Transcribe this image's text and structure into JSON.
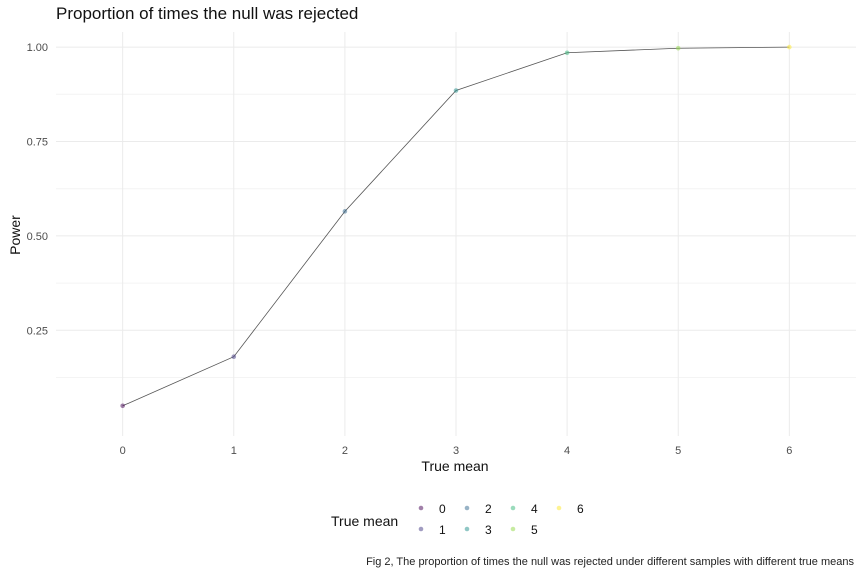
{
  "chart_data": {
    "type": "line",
    "title": "Proportion of times the null was rejected",
    "xlabel": "True mean",
    "ylabel": "Power",
    "x": [
      0,
      1,
      2,
      3,
      4,
      5,
      6
    ],
    "series": [
      {
        "values": [
          0.05,
          0.18,
          0.565,
          0.885,
          0.985,
          0.997,
          1.0
        ]
      }
    ],
    "point_colors": [
      "#440154",
      "#443A83",
      "#31688E",
      "#21908C",
      "#35B779",
      "#8FD744",
      "#FDE725"
    ],
    "line_color": "#555555",
    "xlim": [
      -0.6,
      6.6
    ],
    "ylim": [
      -0.03,
      1.04
    ],
    "x_ticks": [
      "0",
      "1",
      "2",
      "3",
      "4",
      "5",
      "6"
    ],
    "y_ticks": [
      "0.25",
      "0.50",
      "0.75",
      "1.00"
    ],
    "y_tick_values": [
      0.25,
      0.5,
      0.75,
      1.0
    ],
    "grid": true,
    "legend": {
      "title": "True mean",
      "placement": "bottom",
      "entries": [
        "0",
        "1",
        "2",
        "3",
        "4",
        "5",
        "6"
      ]
    },
    "caption": "Fig 2, The proportion of times the null was rejected under different samples with different true means"
  }
}
